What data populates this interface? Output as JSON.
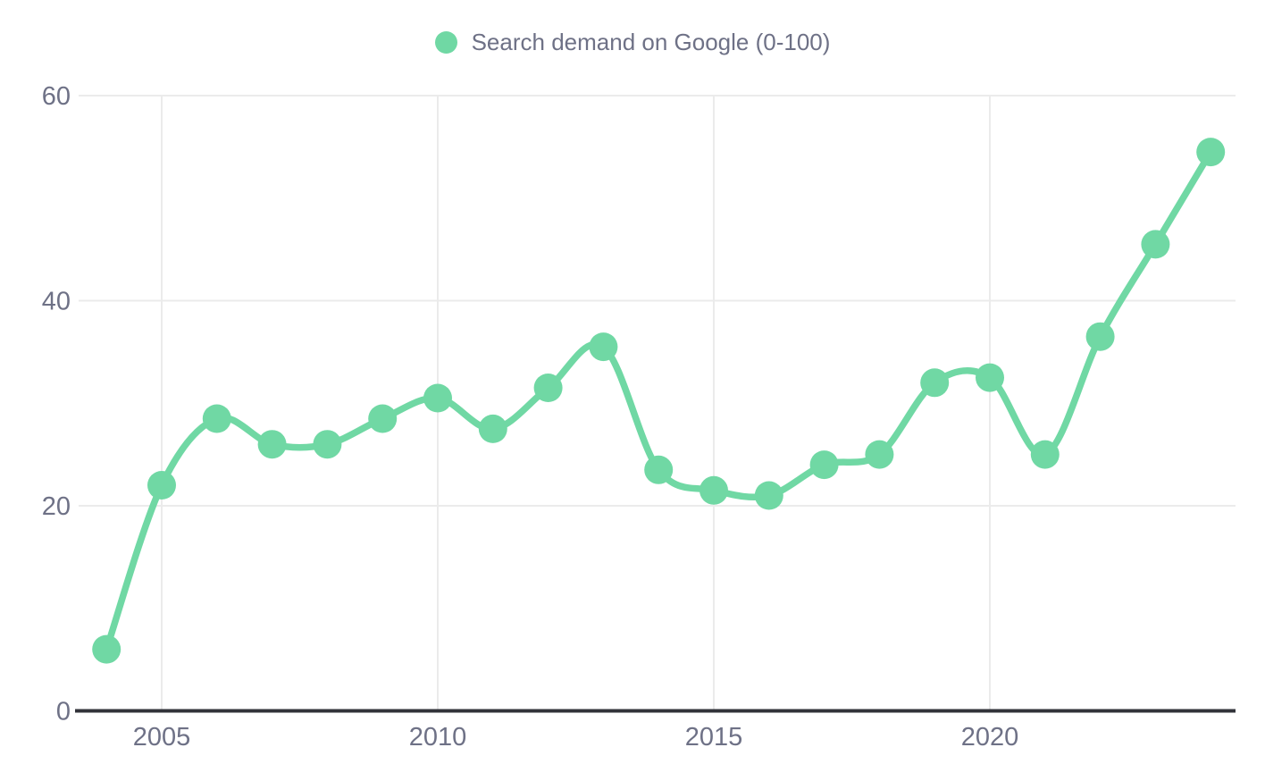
{
  "chart_data": {
    "type": "line",
    "title": "",
    "xlabel": "",
    "ylabel": "",
    "x": [
      2004,
      2005,
      2006,
      2007,
      2008,
      2009,
      2010,
      2011,
      2012,
      2013,
      2014,
      2015,
      2016,
      2017,
      2018,
      2019,
      2020,
      2021,
      2022,
      2023,
      2024
    ],
    "series": [
      {
        "name": "Search demand on Google (0-100)",
        "values": [
          6,
          22,
          28.5,
          26,
          26,
          28.5,
          30.5,
          27.5,
          31.5,
          35.5,
          23.5,
          21.5,
          21,
          24,
          25,
          32,
          32.5,
          25,
          36.5,
          45.5,
          54.5
        ]
      }
    ],
    "xlim": [
      2003.5,
      2024.5
    ],
    "ylim": [
      0,
      60
    ],
    "yticks": [
      0,
      20,
      40,
      60
    ],
    "xticks": [
      2005,
      2010,
      2015,
      2020
    ],
    "grid": true,
    "legend_position": "top",
    "line_smoothing": true,
    "colors": {
      "series": "#70d8a4",
      "tick_text": "#6e7186",
      "legend_text": "#6e7186",
      "grid": "#ebebeb",
      "axis": "#32333a",
      "background": "#ffffff"
    }
  },
  "legend": {
    "label": "Search demand on Google (0-100)"
  }
}
